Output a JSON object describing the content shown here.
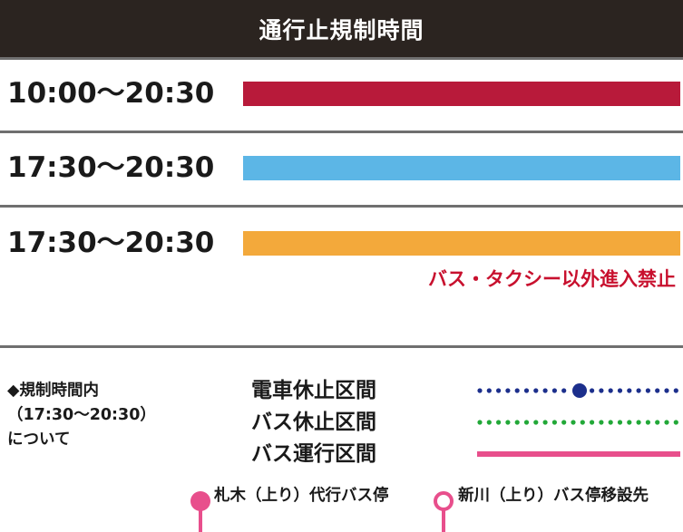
{
  "header": {
    "title": "通行止規制時間"
  },
  "rows": [
    {
      "time": "10:00～20:30",
      "color": "#b81a3a"
    },
    {
      "time": "17:30～20:30",
      "color": "#5cb6e6"
    },
    {
      "time": "17:30～20:30",
      "color": "#f3a93b"
    }
  ],
  "restriction_note": {
    "text": "バス・タクシー以外進入禁止",
    "color": "#c8102e"
  },
  "info": {
    "line1": "◆規制時間内",
    "line2": "（17:30～20:30）",
    "line3": "について"
  },
  "legend": [
    {
      "label": "電車休止区間",
      "style": "dotted-with-marker",
      "color": "#1c2f8c"
    },
    {
      "label": "バス休止区間",
      "style": "dotted",
      "color": "#22a838"
    },
    {
      "label": "バス運行区間",
      "style": "solid",
      "color": "#e84f8c"
    }
  ],
  "bus_stops": [
    {
      "label": "札木（上り）代行バス停",
      "icon": "filled-pin-icon",
      "color": "#e84f8c"
    },
    {
      "label": "新川（上り）バス停移設先",
      "icon": "hollow-pin-icon",
      "color": "#e84f8c"
    }
  ]
}
